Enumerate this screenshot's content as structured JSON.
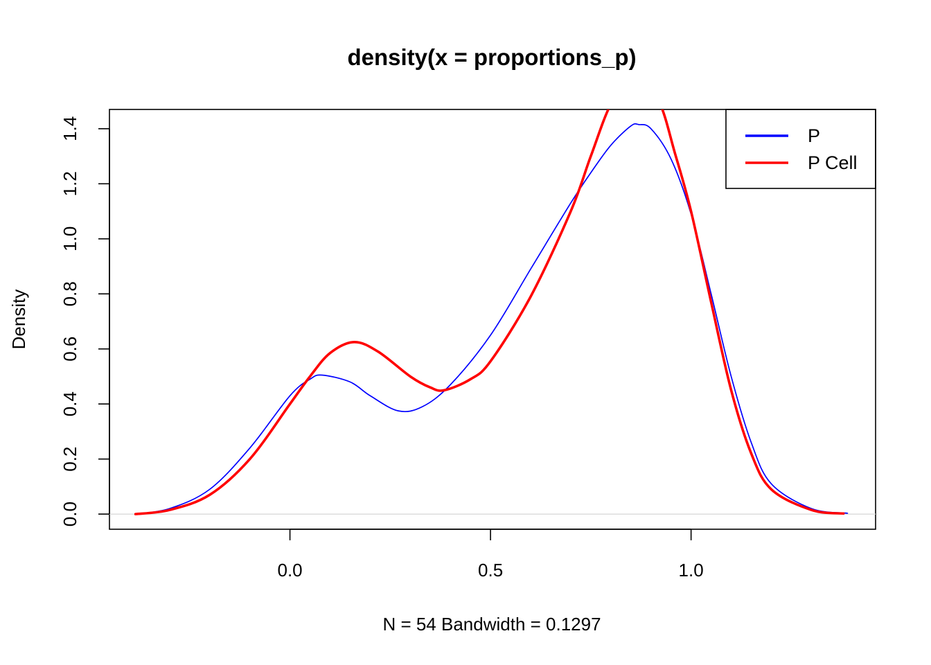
{
  "chart_data": {
    "type": "line",
    "title": "density(x = proportions_p)",
    "xlabel": "N = 54   Bandwidth = 0.1297",
    "ylabel": "Density",
    "xlim": [
      -0.45,
      1.46
    ],
    "ylim": [
      -0.055,
      1.47
    ],
    "xticks": [
      0.0,
      0.5,
      1.0
    ],
    "xtick_labels": [
      "0.0",
      "0.5",
      "1.0"
    ],
    "yticks": [
      0.0,
      0.2,
      0.4,
      0.6,
      0.8,
      1.0,
      1.2,
      1.4
    ],
    "ytick_labels": [
      "0.0",
      "0.2",
      "0.4",
      "0.6",
      "0.8",
      "1.0",
      "1.2",
      "1.4"
    ],
    "zero_line": true,
    "grid": false,
    "legend_position": "top-right",
    "series": [
      {
        "name": "P",
        "color": "#0000ff",
        "line_width": 1,
        "x": [
          -0.385,
          -0.3,
          -0.2,
          -0.1,
          0.0,
          0.05,
          0.08,
          0.15,
          0.2,
          0.27,
          0.33,
          0.4,
          0.5,
          0.6,
          0.7,
          0.75,
          0.8,
          0.85,
          0.87,
          0.9,
          0.95,
          1.0,
          1.05,
          1.1,
          1.15,
          1.2,
          1.3,
          1.39
        ],
        "y": [
          0.0,
          0.02,
          0.09,
          0.24,
          0.43,
          0.49,
          0.505,
          0.48,
          0.43,
          0.375,
          0.39,
          0.47,
          0.65,
          0.89,
          1.13,
          1.24,
          1.34,
          1.41,
          1.415,
          1.4,
          1.29,
          1.09,
          0.8,
          0.5,
          0.26,
          0.11,
          0.02,
          0.003
        ]
      },
      {
        "name": "P Cell",
        "color": "#ff0000",
        "line_width": 2,
        "x": [
          -0.385,
          -0.3,
          -0.2,
          -0.1,
          0.0,
          0.05,
          0.1,
          0.16,
          0.22,
          0.3,
          0.35,
          0.385,
          0.45,
          0.5,
          0.6,
          0.7,
          0.75,
          0.8,
          0.86,
          0.92,
          0.96,
          1.0,
          1.05,
          1.1,
          1.15,
          1.2,
          1.3,
          1.38
        ],
        "y": [
          0.0,
          0.015,
          0.07,
          0.2,
          0.4,
          0.5,
          0.585,
          0.625,
          0.59,
          0.5,
          0.46,
          0.45,
          0.49,
          0.555,
          0.79,
          1.1,
          1.3,
          1.49,
          1.62,
          1.5,
          1.31,
          1.1,
          0.77,
          0.45,
          0.22,
          0.09,
          0.015,
          0.002
        ]
      }
    ]
  }
}
